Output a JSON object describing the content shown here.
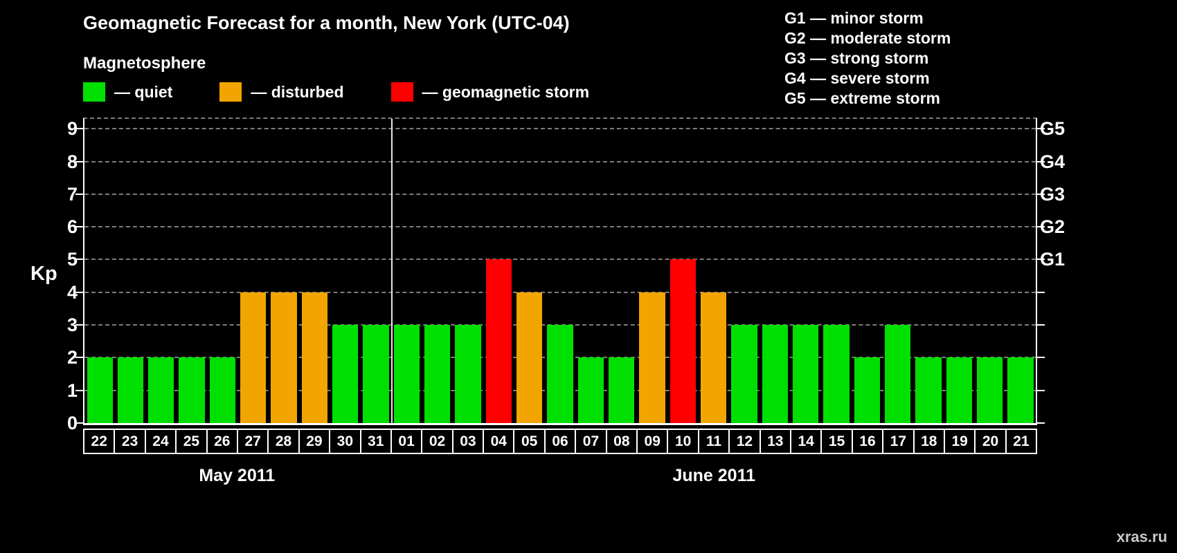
{
  "title": "Geomagnetic Forecast for a month, New York (UTC-04)",
  "subtitle": "Magnetosphere",
  "legend": [
    {
      "key": "quiet",
      "label": "— quiet",
      "color": "#00e000"
    },
    {
      "key": "disturbed",
      "label": "— disturbed",
      "color": "#f2a500"
    },
    {
      "key": "storm",
      "label": "— geomagnetic storm",
      "color": "#ff0000"
    }
  ],
  "g_legend": [
    "G1 — minor storm",
    "G2 — moderate storm",
    "G3 — strong storm",
    "G4 — severe storm",
    "G5 — extreme storm"
  ],
  "watermark": "xras.ru",
  "chart_data": {
    "type": "bar",
    "title": "Geomagnetic Forecast for a month, New York (UTC-04)",
    "ylabel": "Kp",
    "ylim": [
      0,
      9.3
    ],
    "yticks": [
      0,
      1,
      2,
      3,
      4,
      5,
      6,
      7,
      8,
      9
    ],
    "grid": true,
    "legend_position": "top",
    "right_axis": [
      {
        "label": "G1",
        "value": 5
      },
      {
        "label": "G2",
        "value": 6
      },
      {
        "label": "G3",
        "value": 7
      },
      {
        "label": "G4",
        "value": 8
      },
      {
        "label": "G5",
        "value": 9
      }
    ],
    "categories": [
      "22",
      "23",
      "24",
      "25",
      "26",
      "27",
      "28",
      "29",
      "30",
      "31",
      "01",
      "02",
      "03",
      "04",
      "05",
      "06",
      "07",
      "08",
      "09",
      "10",
      "11",
      "12",
      "13",
      "14",
      "15",
      "16",
      "17",
      "18",
      "19",
      "20",
      "21"
    ],
    "values": [
      2,
      2,
      2,
      2,
      2,
      4,
      4,
      4,
      3,
      3,
      3,
      3,
      3,
      5,
      4,
      3,
      2,
      2,
      4,
      5,
      4,
      3,
      3,
      3,
      3,
      2,
      3,
      2,
      2,
      2,
      2
    ],
    "statuses": [
      "quiet",
      "quiet",
      "quiet",
      "quiet",
      "quiet",
      "disturbed",
      "disturbed",
      "disturbed",
      "quiet",
      "quiet",
      "quiet",
      "quiet",
      "quiet",
      "storm",
      "disturbed",
      "quiet",
      "quiet",
      "quiet",
      "disturbed",
      "storm",
      "disturbed",
      "quiet",
      "quiet",
      "quiet",
      "quiet",
      "quiet",
      "quiet",
      "quiet",
      "quiet",
      "quiet",
      "quiet"
    ],
    "month_groups": [
      {
        "label": "May 2011",
        "start": 0,
        "count": 10
      },
      {
        "label": "June 2011",
        "start": 10,
        "count": 21
      }
    ]
  }
}
